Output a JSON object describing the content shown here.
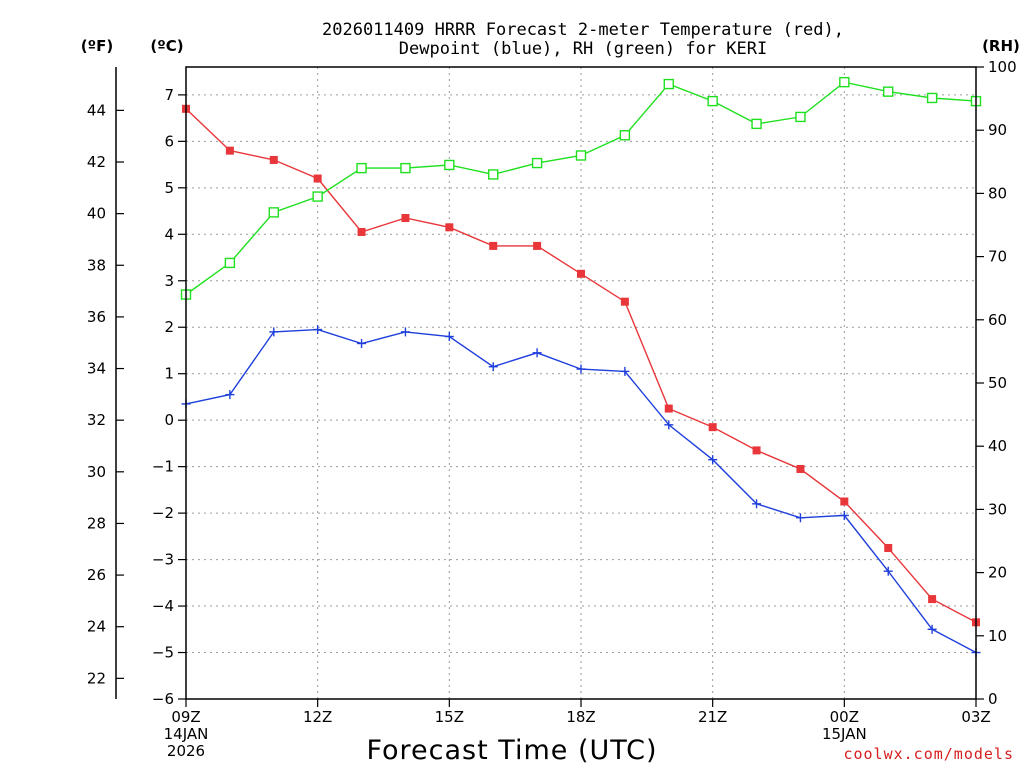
{
  "chart_data": {
    "type": "line",
    "title_lines": [
      "2026011409 HRRR Forecast 2-meter Temperature (red),",
      "Dewpoint (blue), RH (green) for KERI"
    ],
    "units": {
      "fahrenheit": "(ºF)",
      "celsius": "(ºC)",
      "rh": "(RH)"
    },
    "xlabel": "Forecast Time (UTC)",
    "credit": "coolwx.com/models",
    "x_hours": [
      0,
      1,
      2,
      3,
      4,
      5,
      6,
      7,
      8,
      9,
      10,
      11,
      12,
      13,
      14,
      15,
      16,
      17,
      18
    ],
    "x_range": [
      0,
      18
    ],
    "x_ticks": [
      {
        "hour": 0,
        "lines": [
          "09Z",
          "14JAN",
          "2026"
        ]
      },
      {
        "hour": 3,
        "lines": [
          "12Z"
        ]
      },
      {
        "hour": 6,
        "lines": [
          "15Z"
        ]
      },
      {
        "hour": 9,
        "lines": [
          "18Z"
        ]
      },
      {
        "hour": 12,
        "lines": [
          "21Z"
        ]
      },
      {
        "hour": 15,
        "lines": [
          "00Z",
          "15JAN"
        ]
      },
      {
        "hour": 18,
        "lines": [
          "03Z"
        ]
      }
    ],
    "y_celsius": {
      "range": [
        -6,
        7.6
      ],
      "ticks": [
        -6,
        -5,
        -4,
        -3,
        -2,
        -1,
        0,
        1,
        2,
        3,
        4,
        5,
        6,
        7
      ]
    },
    "y_fahrenheit": {
      "ticks": [
        22,
        24,
        26,
        28,
        30,
        32,
        34,
        36,
        38,
        40,
        42,
        44
      ]
    },
    "y_rh": {
      "range": [
        0,
        100
      ],
      "ticks": [
        0,
        10,
        20,
        30,
        40,
        50,
        60,
        70,
        80,
        90,
        100
      ]
    },
    "series": [
      {
        "name": "Temperature",
        "axis": "celsius",
        "color": "#e8363a",
        "marker": "filled-square",
        "values": [
          6.7,
          5.8,
          5.6,
          5.2,
          4.05,
          4.35,
          4.15,
          3.75,
          3.75,
          3.15,
          2.55,
          0.25,
          -0.15,
          -0.65,
          -1.05,
          -1.75,
          -2.75,
          -3.85,
          -4.35
        ]
      },
      {
        "name": "Dewpoint",
        "axis": "celsius",
        "color": "#1f3fdb",
        "marker": "plus",
        "values": [
          0.35,
          0.55,
          1.9,
          1.95,
          1.65,
          1.9,
          1.8,
          1.15,
          1.45,
          1.1,
          1.05,
          -0.1,
          -0.85,
          -1.8,
          -2.1,
          -2.05,
          -3.25,
          -4.5,
          -5.0
        ]
      },
      {
        "name": "RH",
        "axis": "rh",
        "color": "#1fe01f",
        "marker": "open-square",
        "values": [
          64,
          69,
          77,
          79.5,
          84,
          84,
          84.5,
          83,
          84.8,
          86,
          89.2,
          97.3,
          94.6,
          91,
          92.1,
          97.6,
          96.1,
          95.1,
          94.6
        ]
      }
    ]
  }
}
